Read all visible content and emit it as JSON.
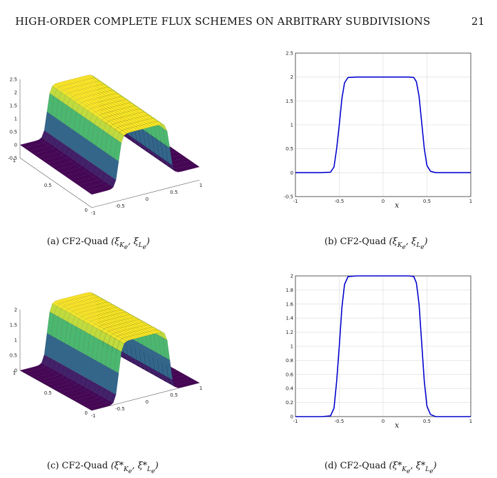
{
  "header": {
    "title": "HIGH-ORDER COMPLETE FLUX SCHEMES ON ARBITRARY SUBDIVISIONS",
    "page_number": "21"
  },
  "captions": {
    "a": {
      "label": "(a) CF2-Quad",
      "math": "(ξ",
      "sub1": "K",
      "sub1b": "e",
      "mid": ", ξ",
      "sub2": "L",
      "sub2b": "e",
      "end": ")"
    },
    "b": {
      "label": "(b) CF2-Quad",
      "math": "(ξ",
      "sub1": "K",
      "sub1b": "e",
      "mid": ", ξ",
      "sub2": "L",
      "sub2b": "e",
      "end": ")"
    },
    "c": {
      "label": "(c) CF2-Quad",
      "math": "(ξ*",
      "sub1": "K",
      "sub1b": "e",
      "mid": ", ξ*",
      "sub2": "L",
      "sub2b": "e",
      "end": ")"
    },
    "d": {
      "label": "(d) CF2-Quad",
      "math": "(ξ*",
      "sub1": "K",
      "sub1b": "e",
      "mid": ", ξ*",
      "sub2": "L",
      "sub2b": "e",
      "end": ")"
    }
  },
  "surface_plots": {
    "a": {
      "z_ticks": [
        "2.5",
        "2",
        "1.5",
        "1",
        "0.5",
        "0",
        "-0.5"
      ],
      "y_ticks": [
        "0",
        "0.5",
        "1"
      ],
      "x_ticks": [
        "-1",
        "-0.5",
        "0",
        "0.5",
        "1"
      ]
    },
    "c": {
      "z_ticks": [
        "2",
        "1.5",
        "1",
        "0.5",
        "0"
      ],
      "y_ticks": [
        "0",
        "0.5",
        "1"
      ],
      "x_ticks": [
        "-1",
        "-0.5",
        "0",
        "0.5",
        "1"
      ]
    }
  },
  "chart_data": [
    {
      "type": "line",
      "id": "b",
      "xlabel": "x",
      "ylabel": "",
      "xlim": [
        -1,
        1
      ],
      "ylim": [
        -0.5,
        2.5
      ],
      "x_ticks": [
        "-1",
        "-0.5",
        "0",
        "0.5",
        "1"
      ],
      "y_ticks": [
        "-0.5",
        "0",
        "0.5",
        "1",
        "1.5",
        "2",
        "2.5"
      ],
      "grid": true,
      "color": "#0000cc",
      "series": [
        {
          "x": [
            -1,
            -0.7,
            -0.6,
            -0.56,
            -0.53,
            -0.5,
            -0.47,
            -0.44,
            -0.4,
            -0.3,
            0,
            0.3,
            0.35,
            0.38,
            0.41,
            0.44,
            0.47,
            0.5,
            0.54,
            0.6,
            0.7,
            1
          ],
          "y": [
            0,
            0,
            0.01,
            0.12,
            0.5,
            1.0,
            1.55,
            1.88,
            1.99,
            2,
            2,
            2,
            1.99,
            1.9,
            1.6,
            1.05,
            0.5,
            0.15,
            0.03,
            0,
            0,
            0
          ]
        }
      ]
    },
    {
      "type": "line",
      "id": "d",
      "xlabel": "x",
      "ylabel": "",
      "xlim": [
        -1,
        1
      ],
      "ylim": [
        0,
        2
      ],
      "x_ticks": [
        "-1",
        "-0.5",
        "0",
        "0.5",
        "1"
      ],
      "y_ticks": [
        "0",
        "0.2",
        "0.4",
        "0.6",
        "0.8",
        "1",
        "1.2",
        "1.4",
        "1.6",
        "1.8",
        "2"
      ],
      "grid": true,
      "color": "#0000cc",
      "series": [
        {
          "x": [
            -1,
            -0.7,
            -0.6,
            -0.56,
            -0.53,
            -0.5,
            -0.47,
            -0.44,
            -0.4,
            -0.3,
            0,
            0.3,
            0.35,
            0.38,
            0.41,
            0.44,
            0.47,
            0.5,
            0.54,
            0.6,
            0.7,
            1
          ],
          "y": [
            0,
            0,
            0.01,
            0.12,
            0.5,
            1.0,
            1.55,
            1.88,
            1.99,
            2,
            2,
            2,
            1.99,
            1.9,
            1.6,
            1.05,
            0.5,
            0.15,
            0.03,
            0,
            0,
            0
          ]
        }
      ]
    }
  ]
}
